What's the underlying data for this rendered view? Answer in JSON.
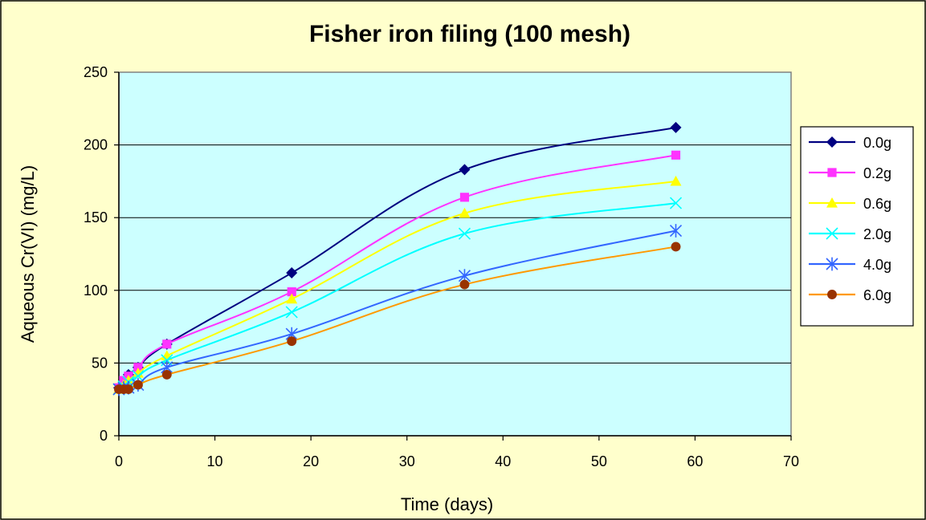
{
  "chart_data": {
    "type": "line",
    "title": "Fisher iron filing (100 mesh)",
    "xlabel": "Time (days)",
    "ylabel": "Aqueous Cr(VI) (mg/L)",
    "xlim": [
      0,
      70
    ],
    "ylim": [
      0,
      250
    ],
    "xticks": [
      0,
      10,
      20,
      30,
      40,
      50,
      60,
      70
    ],
    "yticks": [
      0,
      50,
      100,
      150,
      200,
      250
    ],
    "grid": "horizontal",
    "legend_position": "right",
    "plot_background": "#ccffff",
    "figure_background": "#ffffcc",
    "x": [
      0,
      0.5,
      1,
      2,
      5,
      18,
      36,
      58
    ],
    "series": [
      {
        "name": "0.0g",
        "color": "#000080",
        "marker": "diamond",
        "values": [
          33,
          37,
          42,
          47,
          63,
          112,
          183,
          212
        ]
      },
      {
        "name": "0.2g",
        "color": "#ff33ff",
        "marker": "square",
        "values": [
          33,
          38,
          41,
          47,
          63,
          99,
          164,
          193
        ]
      },
      {
        "name": "0.6g",
        "color": "#ffff00",
        "marker": "triangle",
        "values": [
          32,
          35,
          38,
          43,
          55,
          94,
          153,
          175
        ]
      },
      {
        "name": "2.0g",
        "color": "#00ffff",
        "marker": "x",
        "values": [
          32,
          34,
          37,
          41,
          52,
          85,
          139,
          160
        ]
      },
      {
        "name": "4.0g",
        "color": "#3366ff",
        "marker": "star",
        "values": [
          32,
          33,
          33,
          35,
          47,
          70,
          110,
          141
        ]
      },
      {
        "name": "6.0g",
        "color": "#ff9900",
        "marker_color": "#993300",
        "marker": "circle",
        "values": [
          32,
          32,
          32,
          35,
          42,
          65,
          104,
          130
        ]
      }
    ]
  }
}
